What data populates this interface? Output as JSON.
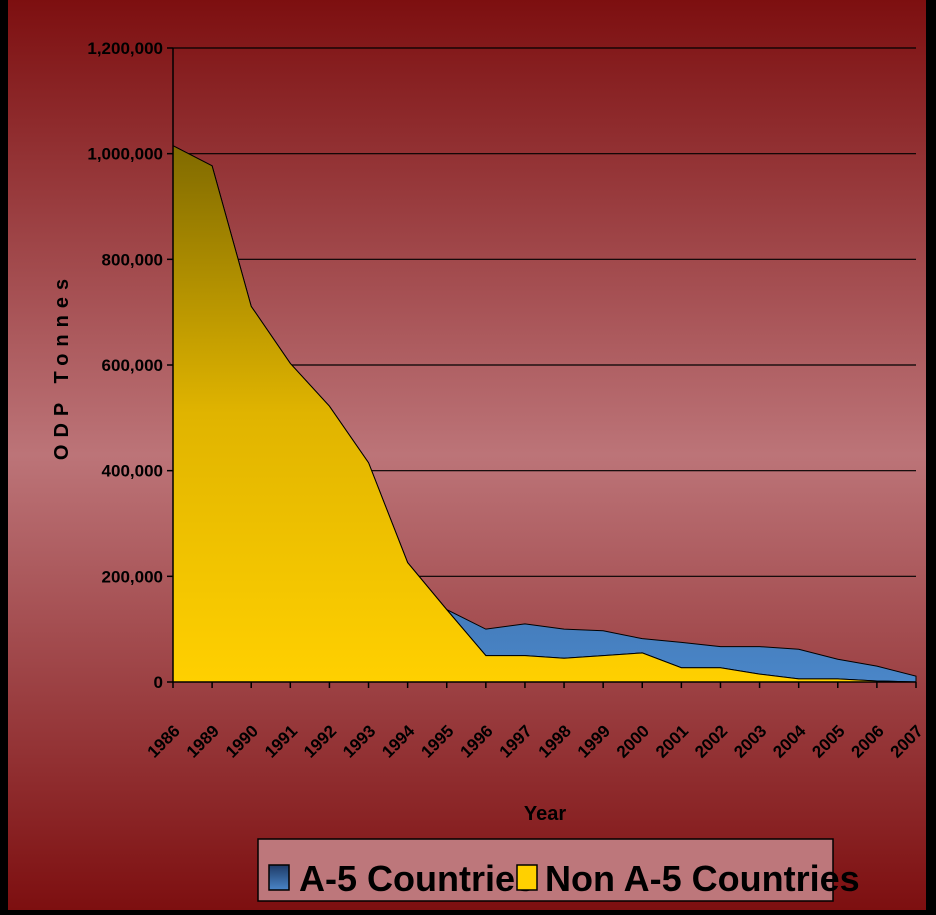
{
  "chart_data": {
    "type": "area",
    "stacked": true,
    "xlabel": "Year",
    "ylabel": "ODP Tonnes",
    "ylim": [
      0,
      1200000
    ],
    "yticks": [
      0,
      200000,
      400000,
      600000,
      800000,
      1000000,
      1200000
    ],
    "ytick_labels": [
      "0",
      "200,000",
      "400,000",
      "600,000",
      "800,000",
      "1,000,000",
      "1,200,000"
    ],
    "categories": [
      "1986",
      "1989",
      "1990",
      "1991",
      "1992",
      "1993",
      "1994",
      "1995",
      "1996",
      "1997",
      "1998",
      "1999",
      "2000",
      "2001",
      "2002",
      "2003",
      "2004",
      "2005",
      "2006",
      "2007"
    ],
    "series": [
      {
        "name": "Non A-5 Countries",
        "color": "#ffd000",
        "values": [
          1015000,
          977000,
          711000,
          603000,
          522000,
          415000,
          226000,
          137000,
          50000,
          50000,
          45000,
          50000,
          55000,
          27000,
          27000,
          15000,
          6000,
          6000,
          2000,
          0
        ]
      },
      {
        "name": "A-5 Countries",
        "color": "#3b6fa8",
        "values": [
          0,
          0,
          0,
          0,
          0,
          0,
          0,
          0,
          50000,
          60000,
          55000,
          47000,
          27000,
          48000,
          40000,
          52000,
          56000,
          37000,
          28000,
          11000
        ]
      }
    ],
    "grid": true,
    "legend": "bottom",
    "legend_entries": [
      "A-5 Countries",
      "Non A-5 Countries"
    ],
    "legend_colors": [
      "#3b6fa8",
      "#ffd000"
    ]
  }
}
